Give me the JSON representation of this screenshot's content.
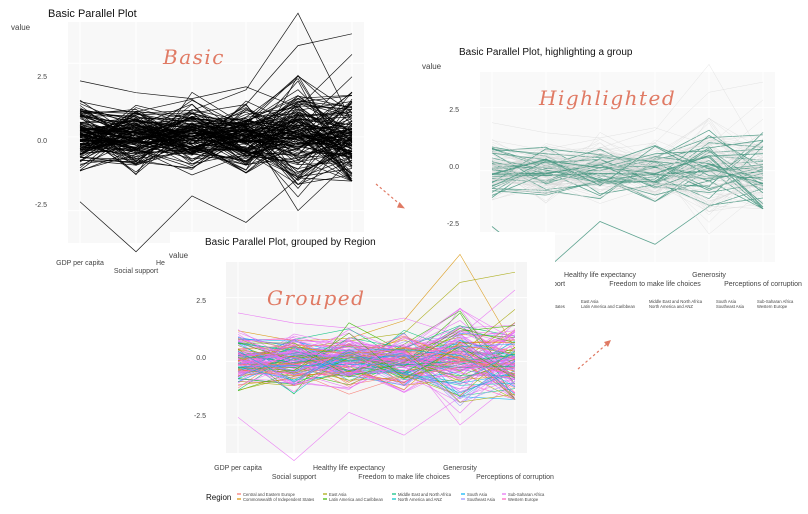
{
  "colors": {
    "accent_annotation": "#e07a64",
    "panel_bg": "#ebebeb",
    "basic_line": "#000000",
    "highlight_line": "#4e9a85",
    "muted_line": "#d9d9d9"
  },
  "panels": [
    {
      "title": "Basic Parallel Plot",
      "annotation": "Basic",
      "ylabel": "value",
      "yticks": [
        "2.5",
        "0.0",
        "-2.5"
      ],
      "xlabels": [
        "GDP per capita",
        "Social support",
        "He"
      ]
    },
    {
      "title": "Basic Parallel Plot, highlighting a group",
      "annotation": "Highlighted",
      "ylabel": "value",
      "yticks": [
        "2.5",
        "0.0",
        "-2.5"
      ],
      "xlabels": [
        "port",
        "Healthy life expectancy",
        "Freedom to make life choices",
        "Generosity",
        "Perceptions of corruption"
      ],
      "legend_fragments": [
        [
          "States"
        ],
        [
          "East Asia",
          "Latin America and Caribbean"
        ],
        [
          "Middle East and North Africa",
          "North America and ANZ"
        ],
        [
          "South Asia",
          "Southeast Asia"
        ],
        [
          "Sub-Saharan Africa",
          "Western Europe"
        ]
      ]
    },
    {
      "title": "Basic Parallel Plot, grouped by Region",
      "annotation": "Grouped",
      "ylabel": "value",
      "yticks": [
        "2.5",
        "0.0",
        "-2.5"
      ],
      "xlabels": [
        "GDP per capita",
        "Social support",
        "Healthy life expectancy",
        "Freedom to make life choices",
        "Generosity",
        "Perceptions of corruption"
      ],
      "legend_title": "Region",
      "legend_items": [
        [
          "Central and Eastern Europe",
          "Commonwealth of Independent States"
        ],
        [
          "East Asia",
          "Latin America and Caribbean"
        ],
        [
          "Middle East and North Africa",
          "North America and ANZ"
        ],
        [
          "South Asia",
          "Southeast Asia"
        ],
        [
          "Sub-Saharan Africa",
          "Western Europe"
        ]
      ]
    }
  ],
  "chart_data": [
    {
      "type": "line",
      "title": "Basic Parallel Plot",
      "categories": [
        "GDP per capita",
        "Social support",
        "Healthy life expectancy",
        "Freedom to make life choices",
        "Generosity",
        "Perceptions of corruption"
      ],
      "ylabel": "value",
      "ylim": [
        -3.6,
        3.9
      ],
      "series_count_approx": 150,
      "series_profile_range": {
        "min": [
          -2.2,
          -3.9,
          -2.0,
          -2.9,
          -2.5,
          -1.5
        ],
        "max": [
          2.0,
          1.7,
          1.6,
          1.7,
          4.2,
          3.5
        ]
      }
    },
    {
      "type": "line",
      "title": "Basic Parallel Plot, highlighting a group",
      "categories": [
        "Social support",
        "Healthy life expectancy",
        "Freedom to make life choices",
        "Generosity",
        "Perceptions of corruption"
      ],
      "ylabel": "value",
      "ylim": [
        -3.6,
        3.9
      ],
      "highlighted_group_color": "#4e9a85",
      "series_count_approx": 45
    },
    {
      "type": "line",
      "title": "Basic Parallel Plot, grouped by Region",
      "categories": [
        "GDP per capita",
        "Social support",
        "Healthy life expectancy",
        "Freedom to make life choices",
        "Generosity",
        "Perceptions of corruption"
      ],
      "ylabel": "value",
      "ylim": [
        -3.6,
        3.9
      ],
      "legend_title": "Region",
      "groups": [
        {
          "name": "Central and Eastern Europe",
          "color": "#f8766d"
        },
        {
          "name": "Commonwealth of Independent States",
          "color": "#d89000"
        },
        {
          "name": "East Asia",
          "color": "#a3a500"
        },
        {
          "name": "Latin America and Caribbean",
          "color": "#39b600"
        },
        {
          "name": "Middle East and North Africa",
          "color": "#00bf7d"
        },
        {
          "name": "North America and ANZ",
          "color": "#00bfc4"
        },
        {
          "name": "South Asia",
          "color": "#00b0f6"
        },
        {
          "name": "Southeast Asia",
          "color": "#9590ff"
        },
        {
          "name": "Sub-Saharan Africa",
          "color": "#e76bf3"
        },
        {
          "name": "Western Europe",
          "color": "#ff62bc"
        }
      ],
      "series_count_approx": 150
    }
  ]
}
